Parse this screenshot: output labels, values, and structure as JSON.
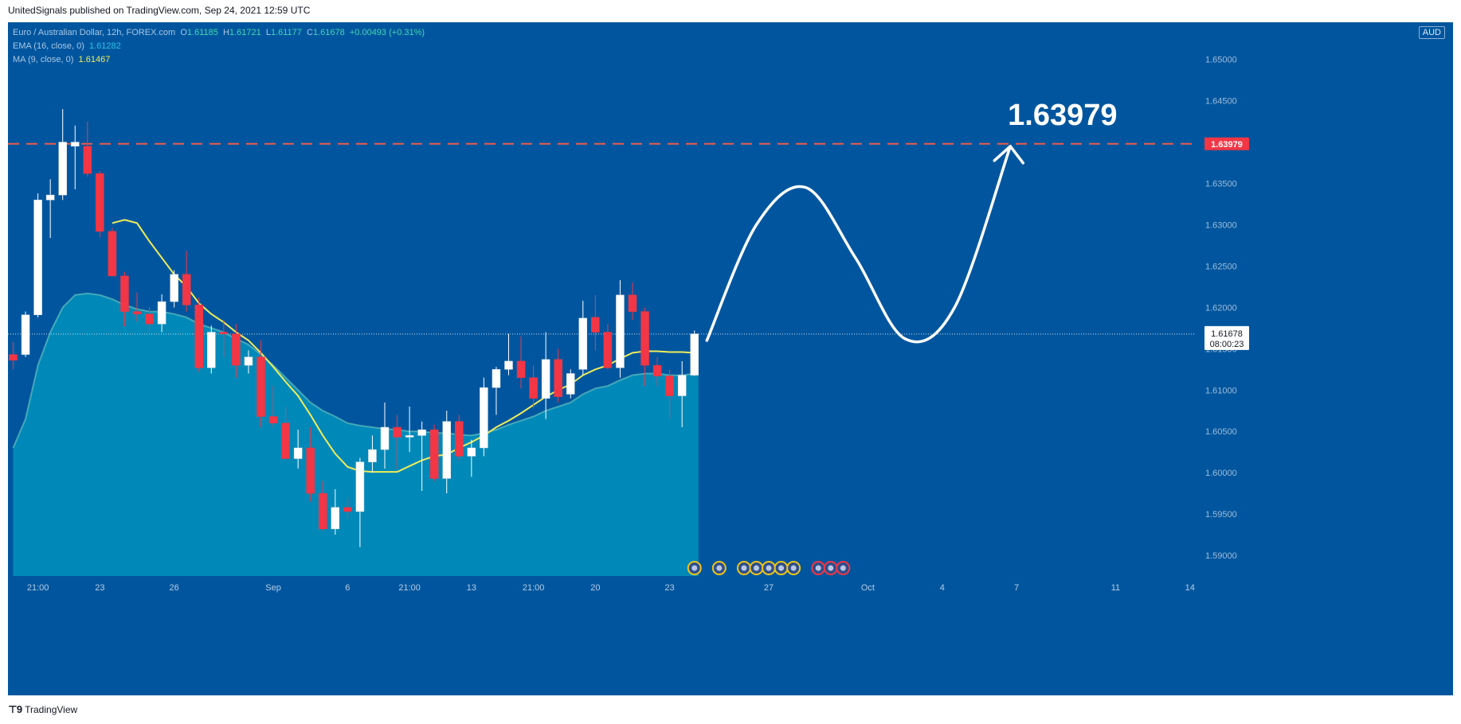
{
  "published": "UnitedSignals published on TradingView.com, Sep 24, 2021 12:59 UTC",
  "legend": {
    "symbol": "Euro / Australian Dollar, 12h, FOREX.com",
    "open_label": "O",
    "open": "1.61185",
    "high_label": "H",
    "high": "1.61721",
    "low_label": "L",
    "low": "1.61177",
    "close_label": "C",
    "close": "1.61678",
    "change": "+0.00493 (+0.31%)",
    "ema_label": "EMA (16, close, 0)",
    "ema_value": "1.61282",
    "ma_label": "MA (9, close, 0)",
    "ma_value": "1.61467"
  },
  "currency": "AUD",
  "target_label": "1.63979",
  "price_badge": {
    "target": "1.63979",
    "current": "1.61678",
    "countdown": "08:00:23"
  },
  "footer": {
    "brand": "TradingView"
  },
  "colors": {
    "background": "#00569e",
    "area": "#0089b8",
    "up": "#ffffff",
    "down": "#f23645",
    "ma": "#f0ec5a",
    "ema": "#7fd6c2",
    "target_line": "#f05a4a"
  },
  "chart_data": {
    "type": "candlestick",
    "title": "Euro / Australian Dollar, 12h, FOREX.com",
    "y_ticks": [
      1.59,
      1.595,
      1.6,
      1.605,
      1.61,
      1.615,
      1.62,
      1.625,
      1.63,
      1.635,
      1.64,
      1.645,
      1.65
    ],
    "y_tick_labels": [
      "1.59000",
      "1.59500",
      "1.60000",
      "1.60500",
      "1.61000",
      "1.61500",
      "1.62000",
      "1.62500",
      "1.63000",
      "1.63500",
      "1.64000",
      "1.64500",
      "1.65000"
    ],
    "ylim": [
      1.5875,
      1.6545
    ],
    "x_labels": [
      {
        "bar": 2,
        "label": "21:00"
      },
      {
        "bar": 7,
        "label": "23"
      },
      {
        "bar": 13,
        "label": "26"
      },
      {
        "bar": 21,
        "label": "Sep"
      },
      {
        "bar": 27,
        "label": "6"
      },
      {
        "bar": 32,
        "label": "21:00"
      },
      {
        "bar": 37,
        "label": "13"
      },
      {
        "bar": 42,
        "label": "21:00"
      },
      {
        "bar": 47,
        "label": "20"
      },
      {
        "bar": 53,
        "label": "23"
      },
      {
        "bar": 61,
        "label": "27"
      },
      {
        "bar": 69,
        "label": "Oct"
      },
      {
        "bar": 75,
        "label": "4"
      },
      {
        "bar": 81,
        "label": "7"
      },
      {
        "bar": 89,
        "label": "11"
      },
      {
        "bar": 95,
        "label": "14"
      }
    ],
    "candles": [
      {
        "o": 1.6143,
        "h": 1.6158,
        "l": 1.6125,
        "c": 1.6136
      },
      {
        "o": 1.6143,
        "h": 1.6195,
        "l": 1.614,
        "c": 1.6191
      },
      {
        "o": 1.6191,
        "h": 1.6338,
        "l": 1.6188,
        "c": 1.633
      },
      {
        "o": 1.633,
        "h": 1.6355,
        "l": 1.6284,
        "c": 1.6336
      },
      {
        "o": 1.6336,
        "h": 1.644,
        "l": 1.633,
        "c": 1.64
      },
      {
        "o": 1.6395,
        "h": 1.642,
        "l": 1.6343,
        "c": 1.64
      },
      {
        "o": 1.6395,
        "h": 1.6425,
        "l": 1.6358,
        "c": 1.6362
      },
      {
        "o": 1.6362,
        "h": 1.6365,
        "l": 1.6285,
        "c": 1.6292
      },
      {
        "o": 1.6292,
        "h": 1.6296,
        "l": 1.624,
        "c": 1.6238
      },
      {
        "o": 1.6238,
        "h": 1.6243,
        "l": 1.6177,
        "c": 1.6195
      },
      {
        "o": 1.6195,
        "h": 1.6218,
        "l": 1.6183,
        "c": 1.6192
      },
      {
        "o": 1.6192,
        "h": 1.62,
        "l": 1.6168,
        "c": 1.618
      },
      {
        "o": 1.618,
        "h": 1.6216,
        "l": 1.617,
        "c": 1.6207
      },
      {
        "o": 1.6207,
        "h": 1.6245,
        "l": 1.62,
        "c": 1.624
      },
      {
        "o": 1.624,
        "h": 1.6268,
        "l": 1.6195,
        "c": 1.6203
      },
      {
        "o": 1.6203,
        "h": 1.6212,
        "l": 1.6122,
        "c": 1.6127
      },
      {
        "o": 1.6127,
        "h": 1.6178,
        "l": 1.612,
        "c": 1.617
      },
      {
        "o": 1.617,
        "h": 1.6185,
        "l": 1.614,
        "c": 1.6168
      },
      {
        "o": 1.6168,
        "h": 1.618,
        "l": 1.6115,
        "c": 1.613
      },
      {
        "o": 1.613,
        "h": 1.6148,
        "l": 1.612,
        "c": 1.614
      },
      {
        "o": 1.614,
        "h": 1.616,
        "l": 1.6055,
        "c": 1.6068
      },
      {
        "o": 1.6068,
        "h": 1.6105,
        "l": 1.6055,
        "c": 1.606
      },
      {
        "o": 1.606,
        "h": 1.608,
        "l": 1.6018,
        "c": 1.6017
      },
      {
        "o": 1.6017,
        "h": 1.6052,
        "l": 1.6005,
        "c": 1.603
      },
      {
        "o": 1.603,
        "h": 1.6055,
        "l": 1.5965,
        "c": 1.5975
      },
      {
        "o": 1.5975,
        "h": 1.599,
        "l": 1.593,
        "c": 1.5932
      },
      {
        "o": 1.5932,
        "h": 1.598,
        "l": 1.5925,
        "c": 1.5958
      },
      {
        "o": 1.5958,
        "h": 1.597,
        "l": 1.5945,
        "c": 1.5953
      },
      {
        "o": 1.5953,
        "h": 1.6018,
        "l": 1.591,
        "c": 1.6013
      },
      {
        "o": 1.6013,
        "h": 1.6045,
        "l": 1.6,
        "c": 1.6028
      },
      {
        "o": 1.6028,
        "h": 1.6085,
        "l": 1.6005,
        "c": 1.6055
      },
      {
        "o": 1.6055,
        "h": 1.607,
        "l": 1.6005,
        "c": 1.6043
      },
      {
        "o": 1.6043,
        "h": 1.608,
        "l": 1.6025,
        "c": 1.6045
      },
      {
        "o": 1.6045,
        "h": 1.6062,
        "l": 1.5978,
        "c": 1.6052
      },
      {
        "o": 1.6052,
        "h": 1.6058,
        "l": 1.599,
        "c": 1.5993
      },
      {
        "o": 1.5993,
        "h": 1.6075,
        "l": 1.5975,
        "c": 1.6062
      },
      {
        "o": 1.6062,
        "h": 1.607,
        "l": 1.6015,
        "c": 1.602
      },
      {
        "o": 1.602,
        "h": 1.604,
        "l": 1.5995,
        "c": 1.603
      },
      {
        "o": 1.603,
        "h": 1.6115,
        "l": 1.602,
        "c": 1.6103
      },
      {
        "o": 1.6103,
        "h": 1.6128,
        "l": 1.607,
        "c": 1.6125
      },
      {
        "o": 1.6125,
        "h": 1.6168,
        "l": 1.6118,
        "c": 1.6135
      },
      {
        "o": 1.6135,
        "h": 1.6165,
        "l": 1.6102,
        "c": 1.6115
      },
      {
        "o": 1.6115,
        "h": 1.613,
        "l": 1.6078,
        "c": 1.609
      },
      {
        "o": 1.609,
        "h": 1.617,
        "l": 1.6065,
        "c": 1.6137
      },
      {
        "o": 1.6137,
        "h": 1.615,
        "l": 1.6085,
        "c": 1.6092
      },
      {
        "o": 1.6095,
        "h": 1.6125,
        "l": 1.609,
        "c": 1.612
      },
      {
        "o": 1.6125,
        "h": 1.6208,
        "l": 1.6118,
        "c": 1.6187
      },
      {
        "o": 1.6188,
        "h": 1.6215,
        "l": 1.6148,
        "c": 1.617
      },
      {
        "o": 1.617,
        "h": 1.618,
        "l": 1.6125,
        "c": 1.6127
      },
      {
        "o": 1.6127,
        "h": 1.6233,
        "l": 1.6115,
        "c": 1.6215
      },
      {
        "o": 1.6215,
        "h": 1.623,
        "l": 1.6185,
        "c": 1.6195
      },
      {
        "o": 1.6195,
        "h": 1.62,
        "l": 1.6105,
        "c": 1.613
      },
      {
        "o": 1.613,
        "h": 1.614,
        "l": 1.6105,
        "c": 1.6117
      },
      {
        "o": 1.6117,
        "h": 1.6125,
        "l": 1.6065,
        "c": 1.6093
      },
      {
        "o": 1.6093,
        "h": 1.6135,
        "l": 1.6055,
        "c": 1.6118
      },
      {
        "o": 1.6118,
        "h": 1.6172,
        "l": 1.6117,
        "c": 1.6168
      }
    ],
    "ma": [
      null,
      null,
      null,
      null,
      null,
      null,
      null,
      null,
      1.6302,
      1.6306,
      1.6302,
      1.628,
      1.626,
      1.624,
      1.6225,
      1.6205,
      1.6192,
      1.6182,
      1.617,
      1.616,
      1.6145,
      1.6128,
      1.611,
      1.6093,
      1.607,
      1.6045,
      1.6023,
      1.6007,
      1.6002,
      1.6001,
      1.6001,
      1.6001,
      1.6008,
      1.6015,
      1.602,
      1.6022,
      1.603,
      1.6037,
      1.6045,
      1.6055,
      1.6063,
      1.6072,
      1.6082,
      1.6092,
      1.61,
      1.6107,
      1.6118,
      1.6125,
      1.613,
      1.6138,
      1.6145,
      1.6147,
      1.6147,
      1.6146,
      1.6146,
      1.6145
    ],
    "ema": [
      1.603,
      1.6065,
      1.613,
      1.617,
      1.62,
      1.6215,
      1.6217,
      1.6215,
      1.621,
      1.6203,
      1.6198,
      1.6195,
      1.6195,
      1.6192,
      1.6188,
      1.618,
      1.6175,
      1.617,
      1.6162,
      1.6155,
      1.6143,
      1.613,
      1.6115,
      1.61,
      1.6085,
      1.6075,
      1.6068,
      1.606,
      1.6057,
      1.6055,
      1.6053,
      1.6052,
      1.605,
      1.605,
      1.6048,
      1.6048,
      1.6046,
      1.6045,
      1.6048,
      1.6052,
      1.6058,
      1.6063,
      1.6068,
      1.6075,
      1.608,
      1.6085,
      1.6095,
      1.6102,
      1.6105,
      1.6112,
      1.6118,
      1.612,
      1.612,
      1.6118,
      1.6118,
      1.612
    ],
    "target_level": 1.63979,
    "current_price": 1.61678,
    "projection_path": [
      {
        "bar": 56.0,
        "p": 1.616
      },
      {
        "bar": 60.0,
        "p": 1.63
      },
      {
        "bar": 64.0,
        "p": 1.6345
      },
      {
        "bar": 68.0,
        "p": 1.626
      },
      {
        "bar": 72.0,
        "p": 1.6162
      },
      {
        "bar": 76.0,
        "p": 1.62
      },
      {
        "bar": 80.5,
        "p": 1.6395
      }
    ],
    "event_markers": [
      {
        "bar": 55,
        "kind": "yellow"
      },
      {
        "bar": 57,
        "kind": "yellow"
      },
      {
        "bar": 59,
        "kind": "yellow"
      },
      {
        "bar": 60,
        "kind": "yellow"
      },
      {
        "bar": 61,
        "kind": "yellow"
      },
      {
        "bar": 62,
        "kind": "yellow"
      },
      {
        "bar": 63,
        "kind": "yellow"
      },
      {
        "bar": 65,
        "kind": "red"
      },
      {
        "bar": 66,
        "kind": "red"
      },
      {
        "bar": 67,
        "kind": "red"
      }
    ]
  }
}
